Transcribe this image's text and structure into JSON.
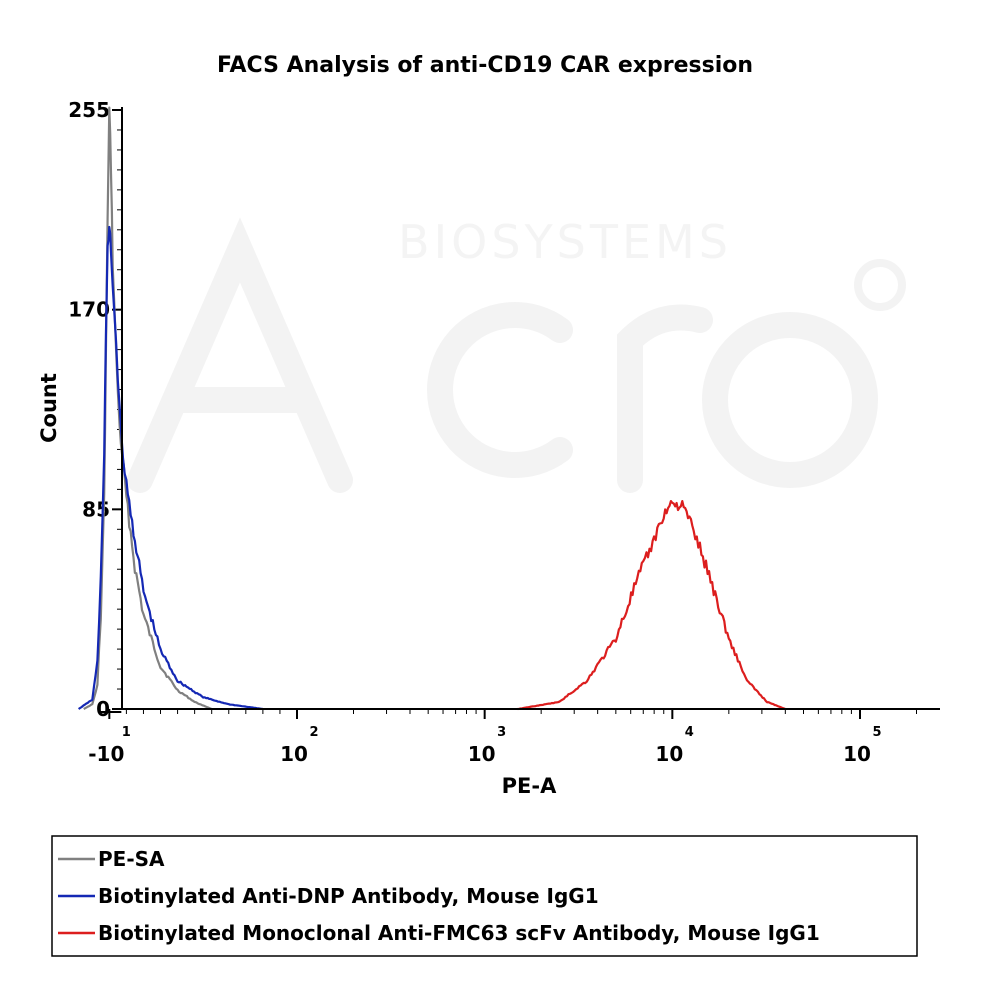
{
  "chart_data": {
    "type": "line",
    "title": "FACS Analysis of anti-CD19 CAR expression",
    "xlabel": "PE-A",
    "ylabel": "Count",
    "xscale": "biexponential",
    "ylim": [
      0,
      255
    ],
    "yticks": [
      {
        "value": 0,
        "label": "0"
      },
      {
        "value": 85,
        "label": "85"
      },
      {
        "value": 170,
        "label": "170"
      },
      {
        "value": 255,
        "label": "255"
      }
    ],
    "xticks": [
      {
        "value": -10,
        "base": "-10",
        "exp": "1"
      },
      {
        "value": 100,
        "base": "10",
        "exp": "2"
      },
      {
        "value": 1000,
        "base": "10",
        "exp": "3"
      },
      {
        "value": 10000,
        "base": "10",
        "exp": "4"
      },
      {
        "value": 100000,
        "base": "10",
        "exp": "5"
      }
    ],
    "series": [
      {
        "name": "PE-SA",
        "color": "#808080",
        "points": [
          [
            -25,
            0
          ],
          [
            -20,
            2
          ],
          [
            -17,
            10
          ],
          [
            -15,
            40
          ],
          [
            -13,
            90
          ],
          [
            -12,
            150
          ],
          [
            -11,
            210
          ],
          [
            -10,
            255
          ],
          [
            -9,
            230
          ],
          [
            -8,
            190
          ],
          [
            -6,
            150
          ],
          [
            -4,
            120
          ],
          [
            0,
            90
          ],
          [
            5,
            60
          ],
          [
            10,
            40
          ],
          [
            20,
            18
          ],
          [
            30,
            8
          ],
          [
            40,
            3
          ],
          [
            50,
            0
          ]
        ]
      },
      {
        "name": "Biotinylated Anti-DNP Antibody, Mouse IgG1",
        "color": "#1428b4",
        "points": [
          [
            -28,
            0
          ],
          [
            -20,
            4
          ],
          [
            -17,
            20
          ],
          [
            -15,
            55
          ],
          [
            -13,
            110
          ],
          [
            -12,
            160
          ],
          [
            -11,
            195
          ],
          [
            -10,
            205
          ],
          [
            -9,
            195
          ],
          [
            -8,
            180
          ],
          [
            -6,
            155
          ],
          [
            -3,
            115
          ],
          [
            0,
            95
          ],
          [
            5,
            72
          ],
          [
            10,
            50
          ],
          [
            20,
            25
          ],
          [
            30,
            12
          ],
          [
            45,
            5
          ],
          [
            60,
            2
          ],
          [
            80,
            0
          ]
        ]
      },
      {
        "name": "Biotinylated Monoclonal Anti-FMC63 scFv Antibody, Mouse IgG1",
        "color": "#dc1e1e",
        "points": [
          [
            1500,
            0
          ],
          [
            2500,
            3
          ],
          [
            3500,
            12
          ],
          [
            5000,
            30
          ],
          [
            6500,
            55
          ],
          [
            8000,
            72
          ],
          [
            9000,
            83
          ],
          [
            10000,
            88
          ],
          [
            11500,
            86
          ],
          [
            13000,
            76
          ],
          [
            16000,
            55
          ],
          [
            20000,
            30
          ],
          [
            25000,
            12
          ],
          [
            32000,
            3
          ],
          [
            40000,
            0
          ]
        ]
      }
    ],
    "legend": {
      "position": "bottom",
      "entries": [
        {
          "label": "PE-SA",
          "color": "#808080"
        },
        {
          "label": "Biotinylated Anti-DNP Antibody, Mouse IgG1",
          "color": "#1428b4"
        },
        {
          "label": "Biotinylated Monoclonal Anti-FMC63 scFv Antibody, Mouse IgG1",
          "color": "#dc1e1e"
        }
      ]
    }
  }
}
